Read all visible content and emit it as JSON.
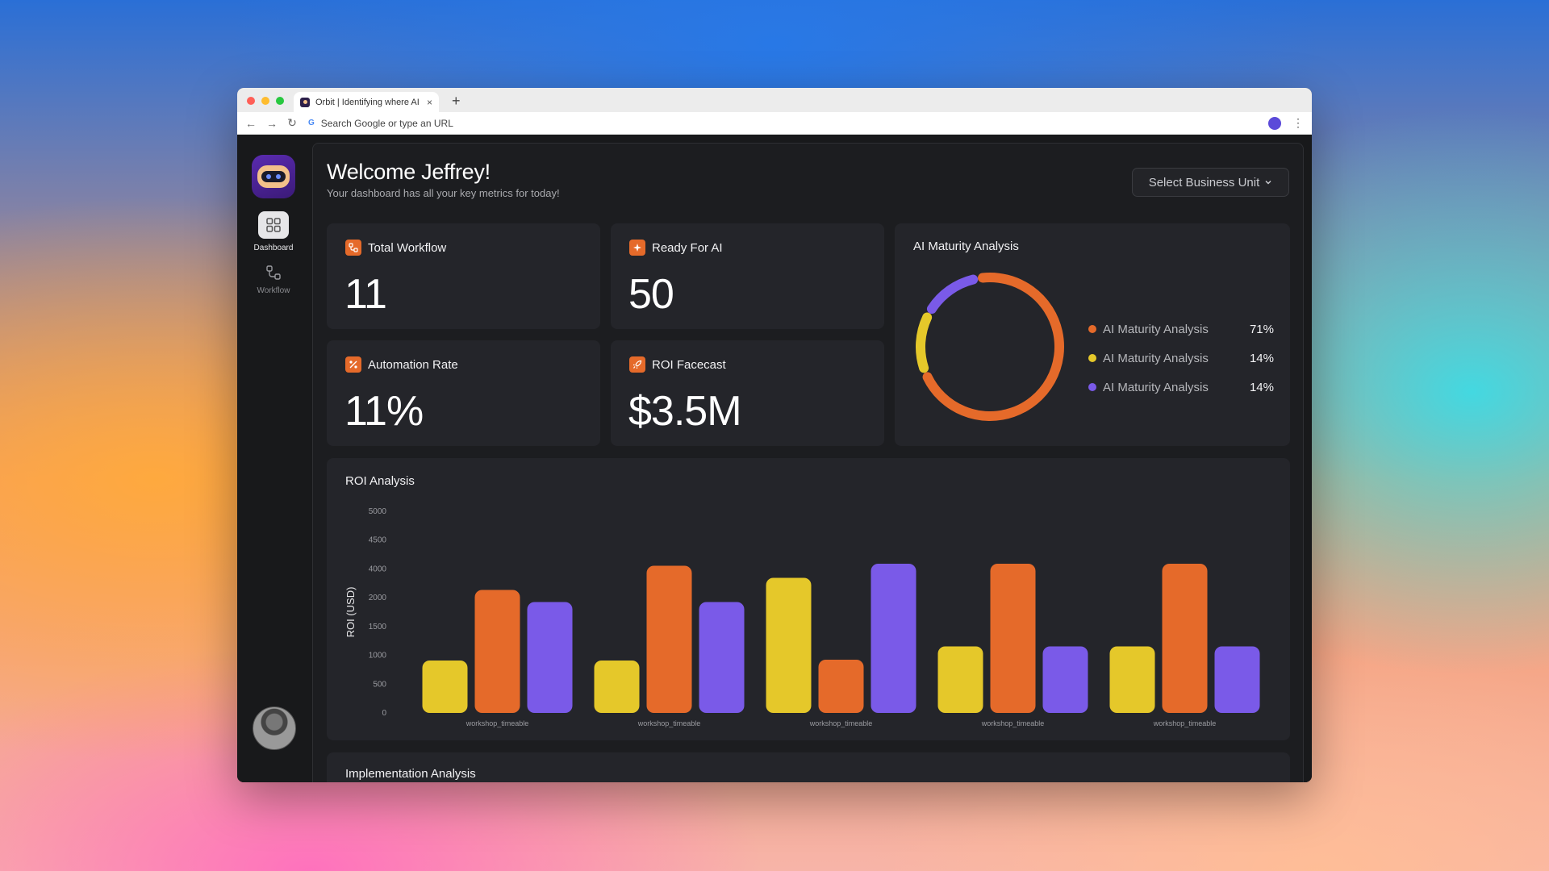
{
  "browser": {
    "tab_title": "Orbit | Identifying where AI ca...",
    "tab_close": "×",
    "new_tab": "+",
    "url_placeholder": "Search Google or type an URL",
    "back": "←",
    "forward": "→",
    "reload": "↻",
    "kebab": "⋮",
    "traffic_colors": [
      "#ff5f57",
      "#febc2e",
      "#28c840"
    ]
  },
  "sidebar": {
    "items": [
      {
        "label": "Dashboard",
        "icon": "grid-icon",
        "active": true
      },
      {
        "label": "Workflow",
        "icon": "workflow-icon",
        "active": false
      }
    ]
  },
  "header": {
    "title": "Welcome Jeffrey!",
    "subtitle": "Your dashboard has all your key metrics for today!",
    "business_unit_select": "Select Business Unit"
  },
  "metrics": [
    {
      "label": "Total Workflow",
      "value": "11",
      "icon": "workflow-icon"
    },
    {
      "label": "Ready For AI",
      "value": "50",
      "icon": "sparkle-icon"
    },
    {
      "label": "Automation Rate",
      "value": "11%",
      "icon": "percent-icon"
    },
    {
      "label": "ROI Facecast",
      "value": "$3.5M",
      "icon": "rocket-icon"
    }
  ],
  "maturity": {
    "title": "AI Maturity Analysis",
    "legend": [
      {
        "label": "AI Maturity Analysis",
        "pct": "71%",
        "color": "#e56a2a"
      },
      {
        "label": "AI Maturity Analysis",
        "pct": "14%",
        "color": "#e5c82a"
      },
      {
        "label": "AI Maturity Analysis",
        "pct": "14%",
        "color": "#7a5ae8"
      }
    ]
  },
  "roi": {
    "title": "ROI Analysis"
  },
  "implementation": {
    "title": "Implementation Analysis"
  },
  "colors": {
    "orange": "#e56a2a",
    "yellow": "#e5c82a",
    "purple": "#7a5ae8"
  },
  "chart_data": [
    {
      "type": "pie",
      "title": "AI Maturity Analysis",
      "labels": [
        "AI Maturity Analysis",
        "AI Maturity Analysis",
        "AI Maturity Analysis"
      ],
      "values": [
        71,
        14,
        14
      ],
      "colors": [
        "#e56a2a",
        "#e5c82a",
        "#7a5ae8"
      ],
      "style": "donut"
    },
    {
      "type": "bar",
      "title": "ROI Analysis",
      "ylabel": "ROI (USD)",
      "xlabel": "",
      "y_ticks": [
        "5000",
        "4500",
        "4000",
        "2000",
        "1500",
        "1000",
        "500",
        "0"
      ],
      "categories": [
        "workshop_timeable",
        "workshop_timeable",
        "workshop_timeable",
        "workshop_timeable",
        "workshop_timeable"
      ],
      "series": [
        {
          "values": [
            1300,
            1300,
            3350,
            1650,
            1650
          ],
          "color": "#e5c82a"
        },
        {
          "values": [
            3050,
            3650,
            1320,
            3700,
            3700
          ],
          "color": "#e56a2a"
        },
        {
          "values": [
            2750,
            2750,
            3700,
            1650,
            1650
          ],
          "color": "#7a5ae8"
        }
      ]
    }
  ]
}
